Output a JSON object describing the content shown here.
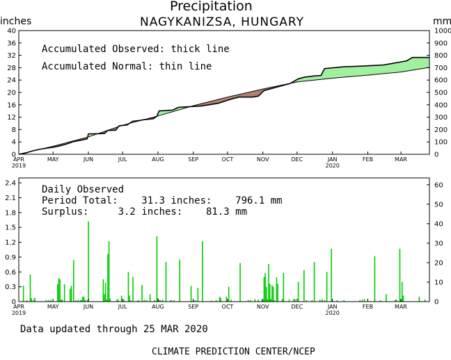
{
  "header": {
    "title": "Precipitation",
    "subtitle": "NAGYKANIZSA, HUNGARY",
    "left_unit": "inches",
    "right_unit": "mm"
  },
  "top_notes": {
    "observed": "Accumulated Observed: thick line",
    "normal": "Accumulated Normal: thin line"
  },
  "bottom_notes": {
    "title": "Daily Observed",
    "period_total": "Period Total:    31.3 inches:    796.1 mm",
    "surplus": "Surplus:     3.2 inches:    81.3 mm"
  },
  "footer": {
    "updated": "Data updated through 25 MAR 2020",
    "credit": "CLIMATE PREDICTION CENTER/NCEP"
  },
  "colors": {
    "surplus_fill": "#a0f0a0",
    "deficit_fill": "#b08070",
    "bar": "#00cc00",
    "axis": "#000000"
  },
  "chart_data": [
    {
      "type": "area",
      "name": "accumulated",
      "ylabel": "inches",
      "y2label": "mm",
      "ylim": [
        0,
        40
      ],
      "y2lim": [
        0,
        1000
      ],
      "yticks": [
        "0",
        "4",
        "8",
        "12",
        "16",
        "20",
        "24",
        "28",
        "32",
        "36",
        "40"
      ],
      "y2ticks": [
        "0",
        "100",
        "200",
        "300",
        "400",
        "500",
        "600",
        "700",
        "800",
        "900",
        "1000"
      ],
      "xlim": [
        0,
        360
      ],
      "months": [
        {
          "label": "APR",
          "year": "2019",
          "day": 0
        },
        {
          "label": "MAY",
          "year": "",
          "day": 30
        },
        {
          "label": "JUN",
          "year": "",
          "day": 61
        },
        {
          "label": "JUL",
          "year": "",
          "day": 91
        },
        {
          "label": "AUG",
          "year": "",
          "day": 122
        },
        {
          "label": "SEP",
          "year": "",
          "day": 153
        },
        {
          "label": "OCT",
          "year": "",
          "day": 183
        },
        {
          "label": "NOV",
          "year": "",
          "day": 214
        },
        {
          "label": "DEC",
          "year": "",
          "day": 244
        },
        {
          "label": "JAN",
          "year": "2020",
          "day": 275
        },
        {
          "label": "FEB",
          "year": "",
          "day": 306
        },
        {
          "label": "MAR",
          "year": "",
          "day": 335
        }
      ],
      "series": [
        {
          "name": "Accumulated Observed",
          "x": [
            0,
            6,
            12,
            18,
            25,
            32,
            40,
            48,
            55,
            60,
            61,
            75,
            78,
            85,
            88,
            95,
            100,
            105,
            110,
            118,
            121,
            123,
            135,
            140,
            150,
            160,
            175,
            185,
            193,
            205,
            210,
            215,
            225,
            232,
            238,
            245,
            250,
            258,
            265,
            268,
            285,
            300,
            320,
            340,
            345,
            360
          ],
          "y": [
            0,
            0.4,
            1.1,
            1.6,
            2.0,
            2.4,
            3.1,
            4.1,
            4.6,
            5.0,
            6.6,
            6.7,
            7.7,
            7.8,
            9.2,
            9.5,
            10.7,
            10.9,
            11.2,
            11.5,
            12.3,
            14.0,
            14.3,
            15.2,
            15.4,
            15.6,
            16.5,
            17.7,
            18.5,
            18.5,
            18.8,
            20.6,
            21.6,
            22.3,
            22.9,
            24.4,
            24.9,
            25.3,
            25.5,
            27.7,
            28.3,
            28.5,
            28.9,
            30.2,
            31.3,
            31.3
          ]
        },
        {
          "name": "Accumulated Normal",
          "x": [
            0,
            30,
            61,
            91,
            122,
            153,
            183,
            214,
            244,
            275,
            306,
            335,
            360
          ],
          "y": [
            0,
            2.6,
            5.6,
            9.4,
            12.4,
            15.7,
            18.5,
            21.1,
            23.4,
            24.6,
            25.6,
            26.6,
            28.1
          ]
        }
      ]
    },
    {
      "type": "bar",
      "name": "daily",
      "ylabel": "inches",
      "y2label": "mm",
      "ylim": [
        0,
        2.5
      ],
      "y2lim": [
        0,
        63.5
      ],
      "yticks": [
        "0",
        "0.3",
        "0.6",
        "0.9",
        "1.2",
        "1.5",
        "1.8",
        "2.1",
        "2.4"
      ],
      "y2ticks": [
        "0",
        "10",
        "20",
        "30",
        "40",
        "50",
        "60"
      ],
      "xlim": [
        0,
        360
      ],
      "series": [
        {
          "name": "Daily Observed",
          "x": [
            4,
            7,
            10,
            11,
            13,
            14,
            24,
            26,
            28,
            34,
            35,
            36,
            37,
            38,
            40,
            45,
            46,
            48,
            50,
            52,
            54,
            55,
            56,
            57,
            58,
            60,
            61,
            74,
            75,
            76,
            77,
            78,
            79,
            80,
            86,
            87,
            90,
            92,
            96,
            97,
            98,
            100,
            104,
            105,
            108,
            110,
            112,
            115,
            119,
            121,
            122,
            123,
            124,
            126,
            129,
            133,
            134,
            136,
            141,
            151,
            153,
            155,
            157,
            161,
            169,
            173,
            176,
            177,
            182,
            184,
            186,
            194,
            201,
            203,
            207,
            210,
            213,
            215,
            216,
            217,
            218,
            219,
            220,
            221,
            222,
            223,
            224,
            226,
            227,
            231,
            232,
            237,
            241,
            242,
            245,
            250,
            252,
            257,
            259,
            264,
            266,
            268,
            270,
            274,
            279,
            285,
            299,
            301,
            303,
            312,
            317,
            322,
            330,
            331,
            334,
            335,
            336,
            337,
            351,
            356
          ],
          "y": [
            0.32,
            0.03,
            0.55,
            0.07,
            0.04,
            0.08,
            0.03,
            0.03,
            0.04,
            0.35,
            0.48,
            0.45,
            0.04,
            0.04,
            0.35,
            0.26,
            0.32,
            0.84,
            0.03,
            0.04,
            0.03,
            0.03,
            0.1,
            0.1,
            0.04,
            0.03,
            1.62,
            0.45,
            0.15,
            0.38,
            0.04,
            0.96,
            1.22,
            0.06,
            0.04,
            0.04,
            0.12,
            0.04,
            0.6,
            0.12,
            0.03,
            0.5,
            0.02,
            0.03,
            0.34,
            0.04,
            0.03,
            0.15,
            0.03,
            1.32,
            0.07,
            0.03,
            0.03,
            0.04,
            0.8,
            0.03,
            0.02,
            0.03,
            0.85,
            0.32,
            0.03,
            0.03,
            0.28,
            1.22,
            0.02,
            0.03,
            0.1,
            0.07,
            0.1,
            0.3,
            0.04,
            0.78,
            0.03,
            0.03,
            0.05,
            0.04,
            0.04,
            0.5,
            0.58,
            0.3,
            0.05,
            0.76,
            0.36,
            0.05,
            0.33,
            0.3,
            0.03,
            0.49,
            0.36,
            0.05,
            0.58,
            0.04,
            0.05,
            0.05,
            0.4,
            0.64,
            0.03,
            0.03,
            0.8,
            0.04,
            0.05,
            0.03,
            0.6,
            1.07,
            0.03,
            0.03,
            0.03,
            0.04,
            0.05,
            0.92,
            0.03,
            0.15,
            0.04,
            0.04,
            1.07,
            0.03,
            0.4,
            0.12,
            0.1,
            0.04
          ]
        }
      ]
    }
  ]
}
